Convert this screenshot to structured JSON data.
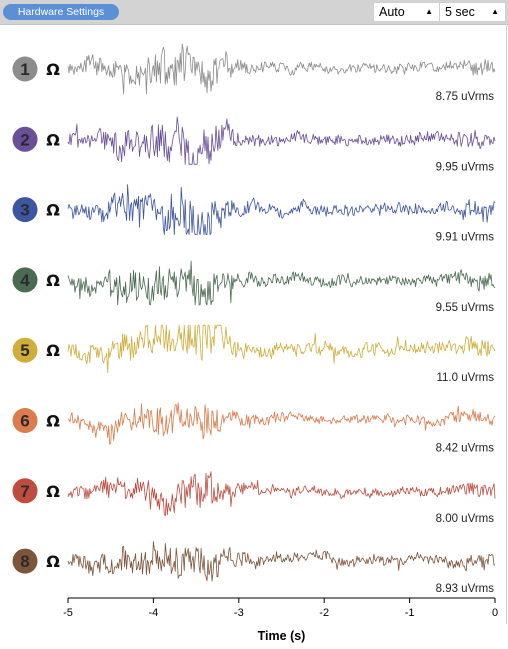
{
  "toolbar": {
    "hardware_settings_label": "Hardware Settings",
    "scale_select": {
      "value": "Auto"
    },
    "timewindow_select": {
      "value": "5 sec"
    }
  },
  "icons": {
    "impedance": "ohm-icon",
    "dropdown": "caret-up-icon"
  },
  "channels": [
    {
      "number": "1",
      "color": "#8c8c8c",
      "rms": "8.75 uVrms"
    },
    {
      "number": "2",
      "color": "#6a4f99",
      "rms": "9.95 uVrms"
    },
    {
      "number": "3",
      "color": "#3d56a1",
      "rms": "9.91 uVrms"
    },
    {
      "number": "4",
      "color": "#4a6b51",
      "rms": "9.55 uVrms"
    },
    {
      "number": "5",
      "color": "#cfae3c",
      "rms": "11.0 uVrms"
    },
    {
      "number": "6",
      "color": "#dc7b4b",
      "rms": "8.42 uVrms"
    },
    {
      "number": "7",
      "color": "#c04c3f",
      "rms": "8.00 uVrms"
    },
    {
      "number": "8",
      "color": "#7d553a",
      "rms": "8.93 uVrms"
    }
  ],
  "impedance_symbol": "Ω",
  "chart_data": {
    "type": "line",
    "xlabel": "Time (s)",
    "xlim": [
      -5,
      0
    ],
    "xticks": [
      "-5",
      "-4",
      "-3",
      "-2",
      "-1",
      "0"
    ],
    "series": [
      {
        "name": "1",
        "rms_uV": 8.75
      },
      {
        "name": "2",
        "rms_uV": 9.95
      },
      {
        "name": "3",
        "rms_uV": 9.91
      },
      {
        "name": "4",
        "rms_uV": 9.55
      },
      {
        "name": "5",
        "rms_uV": 11.0
      },
      {
        "name": "6",
        "rms_uV": 8.42
      },
      {
        "name": "7",
        "rms_uV": 8.0
      },
      {
        "name": "8",
        "rms_uV": 8.93
      }
    ]
  }
}
